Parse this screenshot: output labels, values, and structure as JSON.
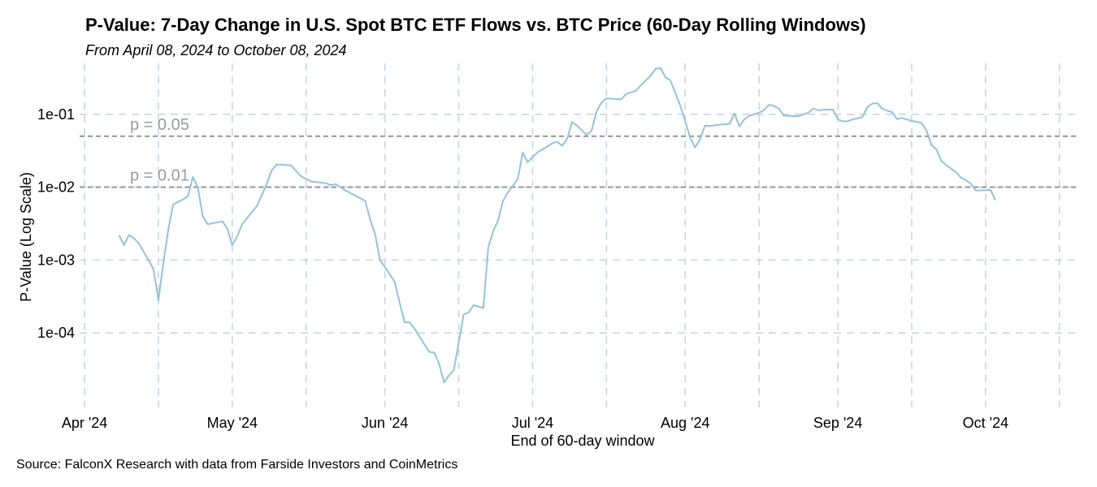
{
  "chart_data": {
    "type": "line",
    "title": "P-Value: 7-Day Change in U.S. Spot BTC ETF Flows vs. BTC Price (60-Day Rolling Windows)",
    "subtitle": "From April 08, 2024 to October 08, 2024",
    "xlabel": "End of 60-day window",
    "ylabel": "P-Value (Log Scale)",
    "y_scale": "log10",
    "ylim": [
      9.5e-06,
      0.5
    ],
    "xlim": [
      "2024-03-31",
      "2024-10-20"
    ],
    "grid": true,
    "x_major_ticks": [
      {
        "label": "Apr '24",
        "date": "2024-04-01"
      },
      {
        "label": "May '24",
        "date": "2024-05-01"
      },
      {
        "label": "Jun '24",
        "date": "2024-06-01"
      },
      {
        "label": "Jul '24",
        "date": "2024-07-01"
      },
      {
        "label": "Aug '24",
        "date": "2024-08-01"
      },
      {
        "label": "Sep '24",
        "date": "2024-09-01"
      },
      {
        "label": "Oct '24",
        "date": "2024-10-01"
      }
    ],
    "x_minor_ticks": [
      "2024-04-16",
      "2024-05-16",
      "2024-06-16",
      "2024-07-16",
      "2024-08-16",
      "2024-09-16",
      "2024-10-16"
    ],
    "y_ticks": [
      {
        "label": "1e-01",
        "value": 0.1
      },
      {
        "label": "1e-02",
        "value": 0.01
      },
      {
        "label": "1e-03",
        "value": 0.001
      },
      {
        "label": "1e-04",
        "value": 0.0001
      }
    ],
    "reference_lines": [
      {
        "label": "p = 0.05",
        "value": 0.05
      },
      {
        "label": "p = 0.01",
        "value": 0.01
      }
    ],
    "series": [
      {
        "name": "P-Value",
        "color": "#93c3dc",
        "points": [
          [
            "2024-04-08",
            0.0022
          ],
          [
            "2024-04-09",
            0.0016
          ],
          [
            "2024-04-10",
            0.0022
          ],
          [
            "2024-04-11",
            0.002
          ],
          [
            "2024-04-12",
            0.0017
          ],
          [
            "2024-04-13",
            0.0013
          ],
          [
            "2024-04-14",
            0.001
          ],
          [
            "2024-04-15",
            0.00075
          ],
          [
            "2024-04-16",
            0.00028
          ],
          [
            "2024-04-17",
            0.0009
          ],
          [
            "2024-04-18",
            0.0026
          ],
          [
            "2024-04-19",
            0.0058
          ],
          [
            "2024-04-21",
            0.0068
          ],
          [
            "2024-04-22",
            0.0075
          ],
          [
            "2024-04-23",
            0.0138
          ],
          [
            "2024-04-24",
            0.01
          ],
          [
            "2024-04-25",
            0.004
          ],
          [
            "2024-04-26",
            0.0031
          ],
          [
            "2024-04-29",
            0.0034
          ],
          [
            "2024-04-30",
            0.0027
          ],
          [
            "2024-05-01",
            0.0016
          ],
          [
            "2024-05-02",
            0.0021
          ],
          [
            "2024-05-03",
            0.0031
          ],
          [
            "2024-05-06",
            0.0055
          ],
          [
            "2024-05-07",
            0.0078
          ],
          [
            "2024-05-08",
            0.011
          ],
          [
            "2024-05-09",
            0.017
          ],
          [
            "2024-05-10",
            0.0205
          ],
          [
            "2024-05-13",
            0.0198
          ],
          [
            "2024-05-14",
            0.0165
          ],
          [
            "2024-05-15",
            0.014
          ],
          [
            "2024-05-16",
            0.013
          ],
          [
            "2024-05-17",
            0.012
          ],
          [
            "2024-05-20",
            0.0113
          ],
          [
            "2024-05-21",
            0.0107
          ],
          [
            "2024-05-22",
            0.011
          ],
          [
            "2024-05-23",
            0.01
          ],
          [
            "2024-05-24",
            0.009
          ],
          [
            "2024-05-28",
            0.0065
          ],
          [
            "2024-05-29",
            0.0036
          ],
          [
            "2024-05-30",
            0.0023
          ],
          [
            "2024-05-31",
            0.001
          ],
          [
            "2024-06-01",
            0.0008
          ],
          [
            "2024-06-03",
            0.0005
          ],
          [
            "2024-06-04",
            0.00026
          ],
          [
            "2024-06-05",
            0.00014
          ],
          [
            "2024-06-06",
            0.00014
          ],
          [
            "2024-06-07",
            0.000115
          ],
          [
            "2024-06-10",
            5.5e-05
          ],
          [
            "2024-06-11",
            5.4e-05
          ],
          [
            "2024-06-12",
            3.8e-05
          ],
          [
            "2024-06-13",
            2.1e-05
          ],
          [
            "2024-06-14",
            2.6e-05
          ],
          [
            "2024-06-15",
            3.1e-05
          ],
          [
            "2024-06-17",
            0.00018
          ],
          [
            "2024-06-18",
            0.00019
          ],
          [
            "2024-06-19",
            0.00024
          ],
          [
            "2024-06-21",
            0.00022
          ],
          [
            "2024-06-22",
            0.0015
          ],
          [
            "2024-06-23",
            0.0025
          ],
          [
            "2024-06-24",
            0.0035
          ],
          [
            "2024-06-25",
            0.0065
          ],
          [
            "2024-06-26",
            0.0085
          ],
          [
            "2024-06-27",
            0.0105
          ],
          [
            "2024-06-28",
            0.013
          ],
          [
            "2024-06-29",
            0.03
          ],
          [
            "2024-06-30",
            0.022
          ],
          [
            "2024-07-01",
            0.026
          ],
          [
            "2024-07-02",
            0.03
          ],
          [
            "2024-07-03",
            0.033
          ],
          [
            "2024-07-04",
            0.036
          ],
          [
            "2024-07-05",
            0.04
          ],
          [
            "2024-07-06",
            0.042
          ],
          [
            "2024-07-07",
            0.037
          ],
          [
            "2024-07-08",
            0.046
          ],
          [
            "2024-07-09",
            0.078
          ],
          [
            "2024-07-10",
            0.07
          ],
          [
            "2024-07-11",
            0.06
          ],
          [
            "2024-07-12",
            0.052
          ],
          [
            "2024-07-13",
            0.06
          ],
          [
            "2024-07-14",
            0.11
          ],
          [
            "2024-07-15",
            0.145
          ],
          [
            "2024-07-16",
            0.165
          ],
          [
            "2024-07-17",
            0.164
          ],
          [
            "2024-07-18",
            0.162
          ],
          [
            "2024-07-19",
            0.16
          ],
          [
            "2024-07-20",
            0.19
          ],
          [
            "2024-07-21",
            0.2
          ],
          [
            "2024-07-22",
            0.21
          ],
          [
            "2024-07-23",
            0.25
          ],
          [
            "2024-07-24",
            0.29
          ],
          [
            "2024-07-25",
            0.34
          ],
          [
            "2024-07-26",
            0.42
          ],
          [
            "2024-07-27",
            0.43
          ],
          [
            "2024-07-28",
            0.32
          ],
          [
            "2024-07-29",
            0.29
          ],
          [
            "2024-07-31",
            0.13
          ],
          [
            "2024-08-01",
            0.08
          ],
          [
            "2024-08-02",
            0.048
          ],
          [
            "2024-08-03",
            0.035
          ],
          [
            "2024-08-04",
            0.045
          ],
          [
            "2024-08-05",
            0.07
          ],
          [
            "2024-08-06",
            0.069
          ],
          [
            "2024-08-08",
            0.072
          ],
          [
            "2024-08-10",
            0.074
          ],
          [
            "2024-08-11",
            0.102
          ],
          [
            "2024-08-12",
            0.068
          ],
          [
            "2024-08-13",
            0.085
          ],
          [
            "2024-08-14",
            0.095
          ],
          [
            "2024-08-15",
            0.1
          ],
          [
            "2024-08-16",
            0.105
          ],
          [
            "2024-08-17",
            0.114
          ],
          [
            "2024-08-18",
            0.135
          ],
          [
            "2024-08-19",
            0.13
          ],
          [
            "2024-08-20",
            0.12
          ],
          [
            "2024-08-21",
            0.096
          ],
          [
            "2024-08-22",
            0.095
          ],
          [
            "2024-08-24",
            0.094
          ],
          [
            "2024-08-25",
            0.1
          ],
          [
            "2024-08-26",
            0.105
          ],
          [
            "2024-08-27",
            0.12
          ],
          [
            "2024-08-28",
            0.113
          ],
          [
            "2024-08-29",
            0.115
          ],
          [
            "2024-08-31",
            0.116
          ],
          [
            "2024-09-01",
            0.085
          ],
          [
            "2024-09-02",
            0.08
          ],
          [
            "2024-09-03",
            0.08
          ],
          [
            "2024-09-04",
            0.085
          ],
          [
            "2024-09-05",
            0.088
          ],
          [
            "2024-09-06",
            0.092
          ],
          [
            "2024-09-07",
            0.125
          ],
          [
            "2024-09-08",
            0.14
          ],
          [
            "2024-09-09",
            0.142
          ],
          [
            "2024-09-10",
            0.12
          ],
          [
            "2024-09-11",
            0.112
          ],
          [
            "2024-09-12",
            0.107
          ],
          [
            "2024-09-13",
            0.086
          ],
          [
            "2024-09-14",
            0.089
          ],
          [
            "2024-09-15",
            0.085
          ],
          [
            "2024-09-16",
            0.081
          ],
          [
            "2024-09-17",
            0.079
          ],
          [
            "2024-09-18",
            0.076
          ],
          [
            "2024-09-19",
            0.06
          ],
          [
            "2024-09-20",
            0.038
          ],
          [
            "2024-09-21",
            0.033
          ],
          [
            "2024-09-22",
            0.023
          ],
          [
            "2024-09-23",
            0.02
          ],
          [
            "2024-09-24",
            0.018
          ],
          [
            "2024-09-25",
            0.016
          ],
          [
            "2024-09-26",
            0.0135
          ],
          [
            "2024-09-27",
            0.0125
          ],
          [
            "2024-09-28",
            0.0112
          ],
          [
            "2024-09-29",
            0.009
          ],
          [
            "2024-10-01",
            0.0091
          ],
          [
            "2024-10-02",
            0.0092
          ],
          [
            "2024-10-03",
            0.0066
          ]
        ]
      }
    ],
    "caption": "Source: FalconX Research with data from Farside Investors and CoinMetrics"
  }
}
